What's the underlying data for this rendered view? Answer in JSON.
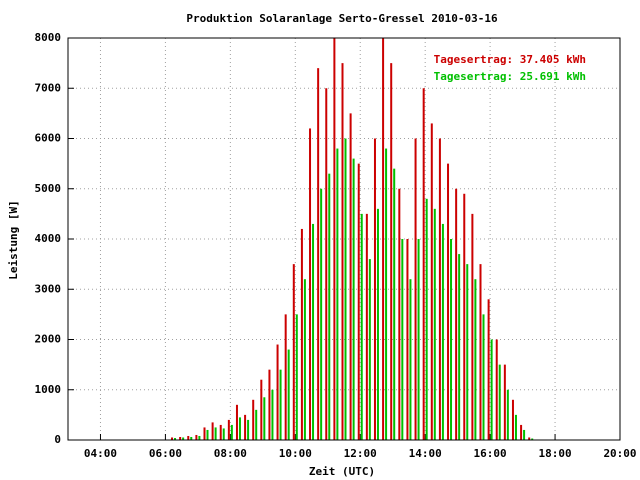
{
  "chart_data": {
    "type": "bar",
    "title": "Produktion Solaranlage Serto-Gressel 2010-03-16",
    "x_label": "Zeit (UTC)",
    "y_label": "Leistung [W]",
    "x": [
      6.25,
      6.5,
      6.75,
      7.0,
      7.25,
      7.5,
      7.75,
      8.0,
      8.25,
      8.5,
      8.75,
      9.0,
      9.25,
      9.5,
      9.75,
      10.0,
      10.25,
      10.5,
      10.75,
      11.0,
      11.25,
      11.5,
      11.75,
      12.0,
      12.25,
      12.5,
      12.75,
      13.0,
      13.25,
      13.5,
      13.75,
      14.0,
      14.25,
      14.5,
      14.75,
      15.0,
      15.25,
      15.5,
      15.75,
      16.0,
      16.25,
      16.5,
      16.75,
      17.0,
      17.25
    ],
    "series": [
      {
        "name": "Tagesertrag: 37.405 kWh",
        "color": "#cc0000",
        "values": [
          50,
          60,
          80,
          100,
          250,
          350,
          300,
          400,
          700,
          500,
          800,
          1200,
          1400,
          1900,
          2500,
          3500,
          4200,
          6200,
          7400,
          7000,
          8000,
          7500,
          6500,
          5500,
          4500,
          6000,
          8000,
          7500,
          5000,
          4000,
          6000,
          7000,
          6300,
          6000,
          5500,
          5000,
          4900,
          4500,
          3500,
          2800,
          2000,
          1500,
          800,
          300,
          50
        ]
      },
      {
        "name": "Tagesertrag: 25.691 kWh",
        "color": "#00c000",
        "values": [
          40,
          50,
          60,
          80,
          200,
          250,
          230,
          300,
          450,
          400,
          600,
          850,
          1000,
          1400,
          1800,
          2500,
          3200,
          4300,
          5000,
          5300,
          5800,
          6000,
          5600,
          4500,
          3600,
          4600,
          5800,
          5400,
          4000,
          3200,
          4000,
          4800,
          4600,
          4300,
          4000,
          3700,
          3500,
          3200,
          2500,
          2000,
          1500,
          1000,
          500,
          200,
          30
        ]
      }
    ],
    "xlim": [
      3,
      20
    ],
    "xticks": [
      {
        "value": 4,
        "label": "04:00"
      },
      {
        "value": 6,
        "label": "06:00"
      },
      {
        "value": 8,
        "label": "08:00"
      },
      {
        "value": 10,
        "label": "10:00"
      },
      {
        "value": 12,
        "label": "12:00"
      },
      {
        "value": 14,
        "label": "14:00"
      },
      {
        "value": 16,
        "label": "16:00"
      },
      {
        "value": 18,
        "label": "18:00"
      },
      {
        "value": 20,
        "label": "20:00"
      }
    ],
    "ylim": [
      0,
      8000
    ],
    "yticks": [
      0,
      1000,
      2000,
      3000,
      4000,
      5000,
      6000,
      7000,
      8000
    ],
    "grid": true
  }
}
